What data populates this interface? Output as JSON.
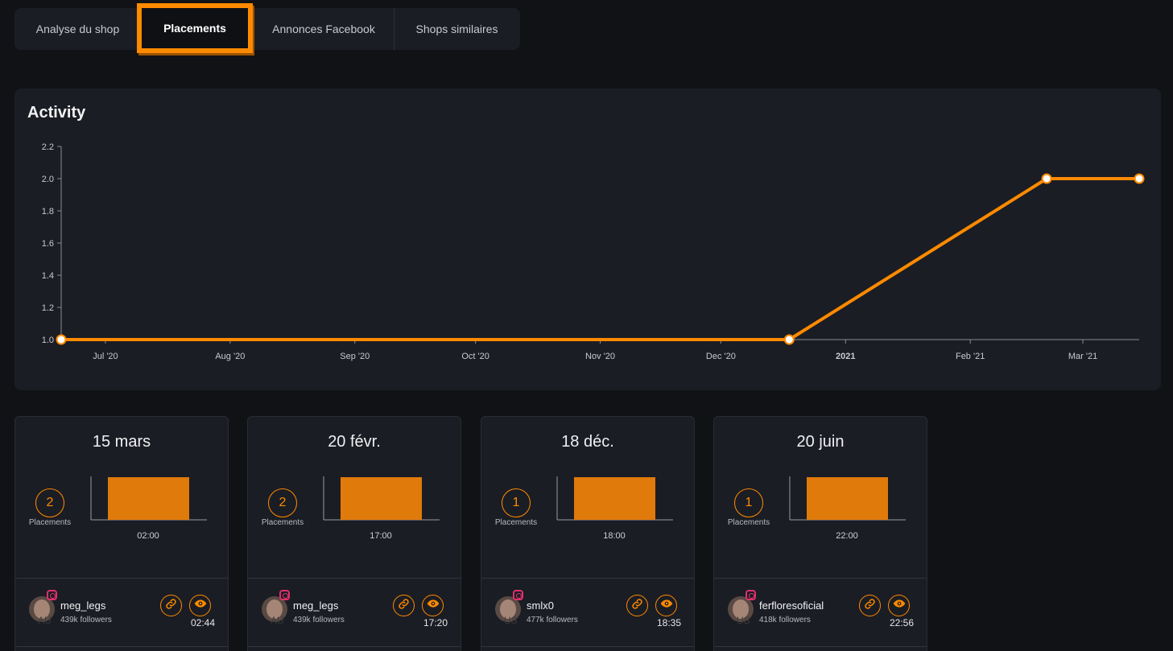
{
  "tabs": [
    {
      "label": "Analyse du shop"
    },
    {
      "label": "Placements"
    },
    {
      "label": "Annonces Facebook"
    },
    {
      "label": "Shops similaires"
    }
  ],
  "activity": {
    "title": "Activity"
  },
  "chart_data": {
    "type": "line",
    "title": "Activity",
    "xlabel": "",
    "ylabel": "",
    "x_tick_labels": [
      "Jul '20",
      "Aug '20",
      "Sep '20",
      "Oct '20",
      "Nov '20",
      "Dec '20",
      "2021",
      "Feb '21",
      "Mar '21"
    ],
    "y_tick_labels": [
      "1.0",
      "1.2",
      "1.4",
      "1.6",
      "1.8",
      "2.0",
      "2.2"
    ],
    "ylim": [
      1.0,
      2.2
    ],
    "xlim": [
      "2020-06-20",
      "2021-03-15"
    ],
    "grid": false,
    "line_color": "#ff8a00",
    "series": [
      {
        "points": [
          {
            "x": "2020-06-20",
            "y": 1
          },
          {
            "x": "2020-12-18",
            "y": 1
          },
          {
            "x": "2021-02-20",
            "y": 2
          },
          {
            "x": "2021-03-15",
            "y": 2
          }
        ]
      }
    ]
  },
  "cards": [
    {
      "date": "15 mars",
      "count": "2",
      "count_label": "Placements",
      "hour": "02:00",
      "username": "meg_legs",
      "followers": "439k followers",
      "country": "AU",
      "time": "02:44"
    },
    {
      "date": "20 févr.",
      "count": "2",
      "count_label": "Placements",
      "hour": "17:00",
      "username": "meg_legs",
      "followers": "439k followers",
      "country": "AU",
      "time": "17:20"
    },
    {
      "date": "18 déc.",
      "count": "1",
      "count_label": "Placements",
      "hour": "18:00",
      "username": "smlx0",
      "followers": "477k followers",
      "country": "US",
      "time": "18:35"
    },
    {
      "date": "20 juin",
      "count": "1",
      "count_label": "Placements",
      "hour": "22:00",
      "username": "ferfloresoficial",
      "followers": "418k followers",
      "country": "US",
      "time": "22:56"
    }
  ],
  "colors": {
    "accent": "#ff8a00",
    "bar": "#e07a0a",
    "panel": "#1b1d24",
    "background": "#111216",
    "instagram": "#e1306c"
  },
  "icons": {
    "link": "link-icon",
    "eye": "eye-icon",
    "instagram": "instagram-icon"
  }
}
